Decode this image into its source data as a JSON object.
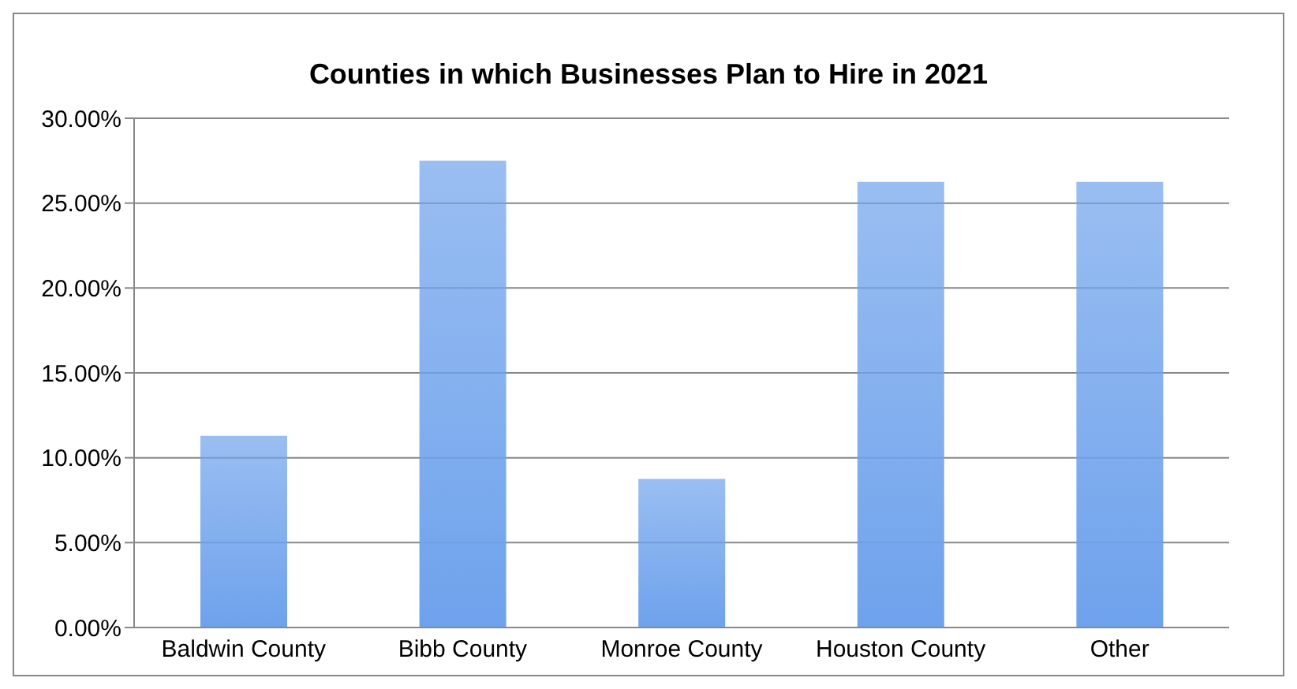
{
  "chart_data": {
    "type": "bar",
    "title": "Counties in which Businesses Plan to Hire in 2021",
    "categories": [
      "Baldwin County",
      "Bibb County",
      "Monroe County",
      "Houston County",
      "Other"
    ],
    "values": [
      11.3,
      27.5,
      8.75,
      26.25,
      26.25
    ],
    "color": "#6ea2ec",
    "ylim": [
      0,
      30
    ],
    "yticks": [
      {
        "value": 0,
        "label": "0.00%"
      },
      {
        "value": 5,
        "label": "5.00%"
      },
      {
        "value": 10,
        "label": "10.00%"
      },
      {
        "value": 15,
        "label": "15.00%"
      },
      {
        "value": 20,
        "label": "20.00%"
      },
      {
        "value": 25,
        "label": "25.00%"
      },
      {
        "value": 30,
        "label": "30.00%"
      }
    ],
    "grid": "y"
  }
}
